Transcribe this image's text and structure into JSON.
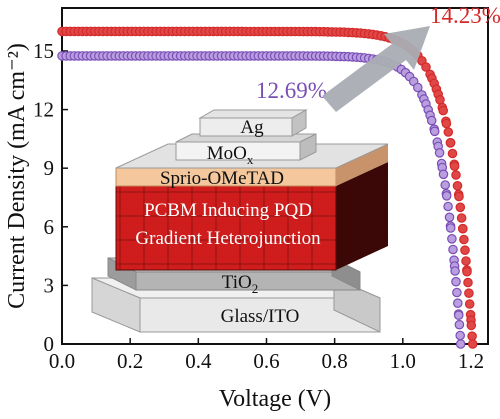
{
  "chart_data": {
    "type": "line",
    "xlabel": "Voltage (V)",
    "ylabel": "Current Density (mA cm⁻²)",
    "xlim": [
      0,
      1.25
    ],
    "ylim": [
      0,
      17.2
    ],
    "xticks": [
      "0.0",
      "0.2",
      "0.4",
      "0.6",
      "0.8",
      "1.0",
      "1.2"
    ],
    "yticks": [
      "0",
      "3",
      "6",
      "9",
      "12",
      "15"
    ],
    "series": [
      {
        "label": "14.23%",
        "color": "#d42a2a",
        "marker_fill": "#e04848",
        "jsc": 16.0,
        "voc": 1.205,
        "vt": 0.063
      },
      {
        "label": "12.69%",
        "color": "#7a4fb5",
        "marker_fill": "#b99ee0",
        "jsc": 14.75,
        "voc": 1.17,
        "vt": 0.057
      }
    ],
    "arrow_color": "#a9adb3"
  },
  "device": {
    "layers": [
      "Ag",
      "MoO",
      "Sprio-OMeTAD",
      "PCBM Inducing PQD",
      "Gradient Heterojunction",
      "TiO",
      "Glass/ITO"
    ],
    "moox_sub": "x",
    "tio2_sub": "2"
  }
}
